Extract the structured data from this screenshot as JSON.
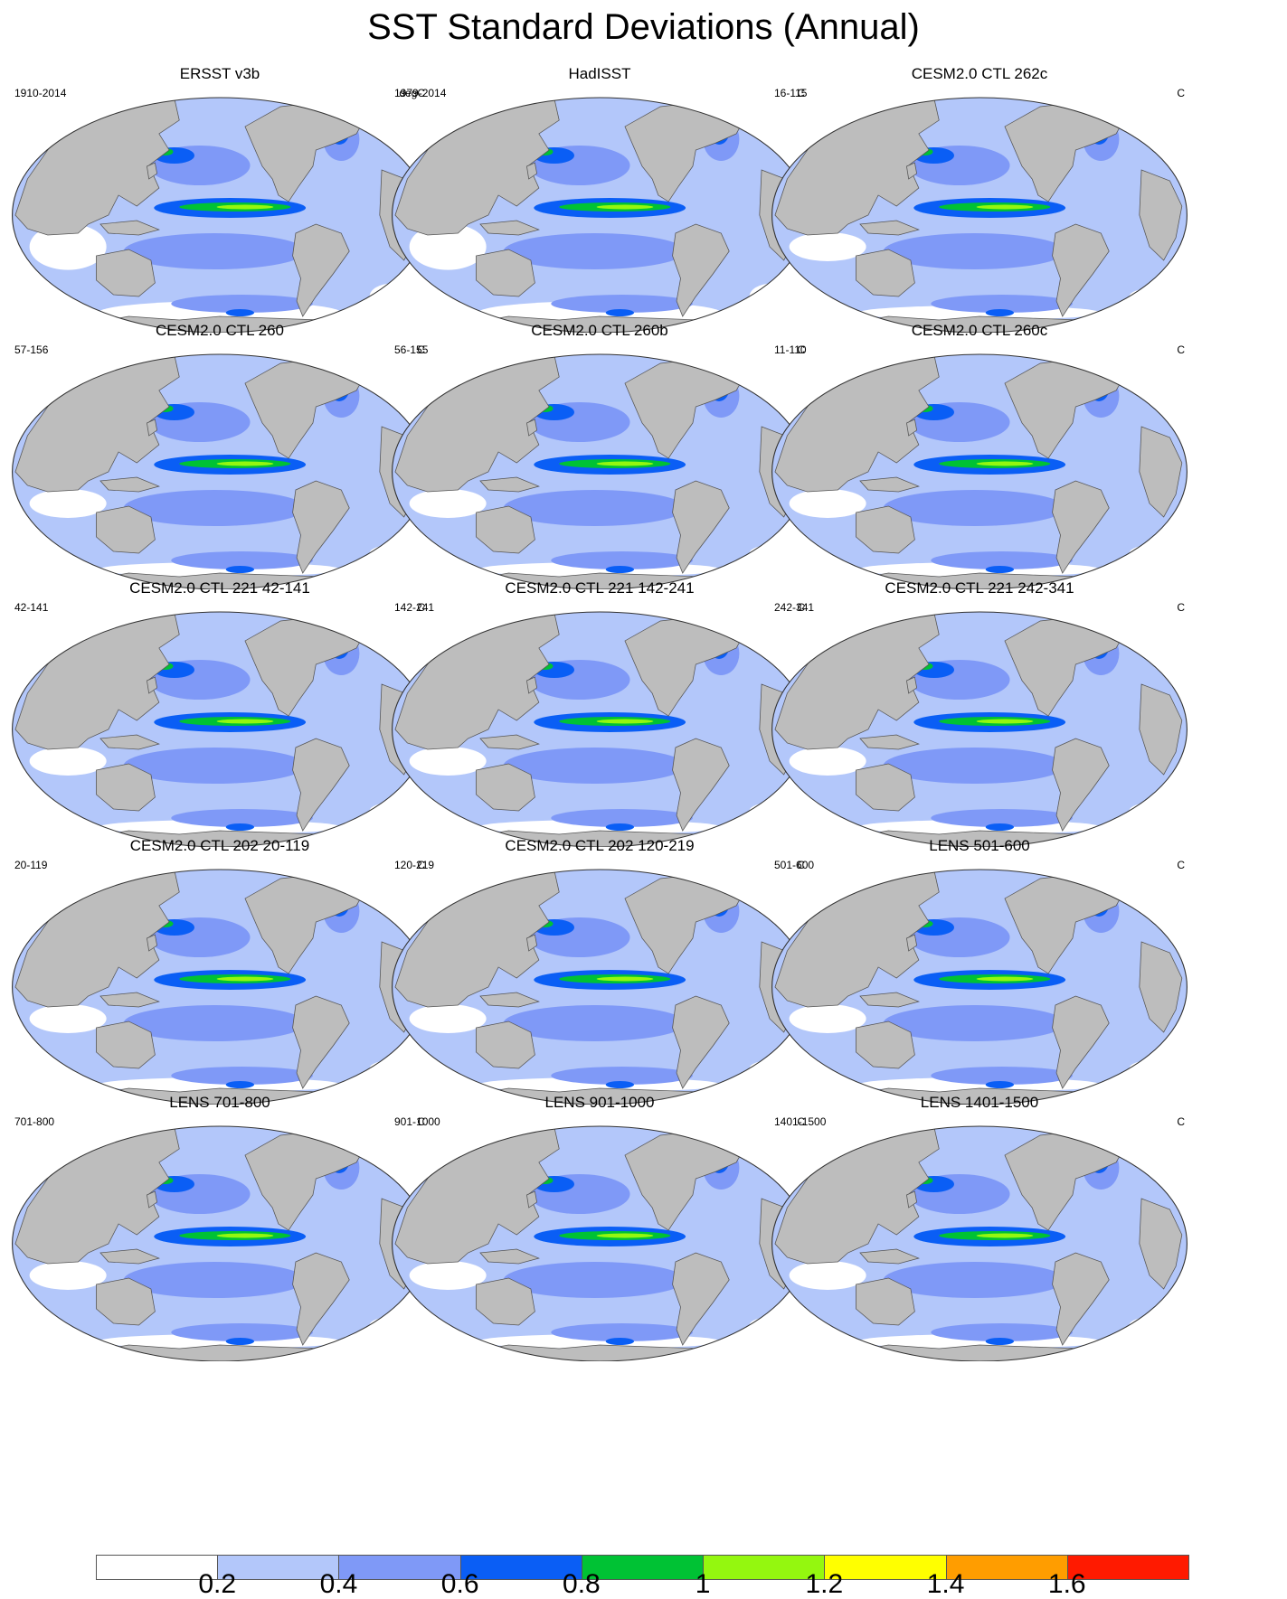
{
  "title": "SST Standard Deviations (Annual)",
  "colors": {
    "land": "#bdbdbd",
    "levels": [
      "#ffffff",
      "#b3c7fa",
      "#7f99f7",
      "#0a5ef5",
      "#00c234",
      "#94f70f",
      "#ffff00",
      "#ff9d00",
      "#ff1a00"
    ]
  },
  "panels": [
    {
      "title": "ERSST v3b",
      "years": "1910-2014",
      "units": "degC"
    },
    {
      "title": "HadISST",
      "years": "1979-2014",
      "units": "C"
    },
    {
      "title": "CESM2.0 CTL 262c",
      "years": "16-115",
      "units": "C"
    },
    {
      "title": "CESM2.0 CTL 260",
      "years": "57-156",
      "units": "C"
    },
    {
      "title": "CESM2.0 CTL 260b",
      "years": "56-155",
      "units": "C"
    },
    {
      "title": "CESM2.0 CTL 260c",
      "years": "11-110",
      "units": "C"
    },
    {
      "title": "CESM2.0 CTL 221 42-141",
      "years": "42-141",
      "units": "C"
    },
    {
      "title": "CESM2.0 CTL 221 142-241",
      "years": "142-241",
      "units": "C"
    },
    {
      "title": "CESM2.0 CTL 221 242-341",
      "years": "242-341",
      "units": "C"
    },
    {
      "title": "CESM2.0 CTL 202 20-119",
      "years": "20-119",
      "units": "C"
    },
    {
      "title": "CESM2.0 CTL 202 120-219",
      "years": "120-219",
      "units": "C"
    },
    {
      "title": "LENS 501-600",
      "years": "501-600",
      "units": "C"
    },
    {
      "title": "LENS 701-800",
      "years": "701-800",
      "units": "C"
    },
    {
      "title": "LENS 901-1000",
      "years": "901-1000",
      "units": "C"
    },
    {
      "title": "LENS 1401-1500",
      "years": "1401-1500",
      "units": "C"
    }
  ],
  "colorbar": {
    "ticks": [
      "0.2",
      "0.4",
      "0.6",
      "0.8",
      "1",
      "1.2",
      "1.4",
      "1.6"
    ]
  }
}
